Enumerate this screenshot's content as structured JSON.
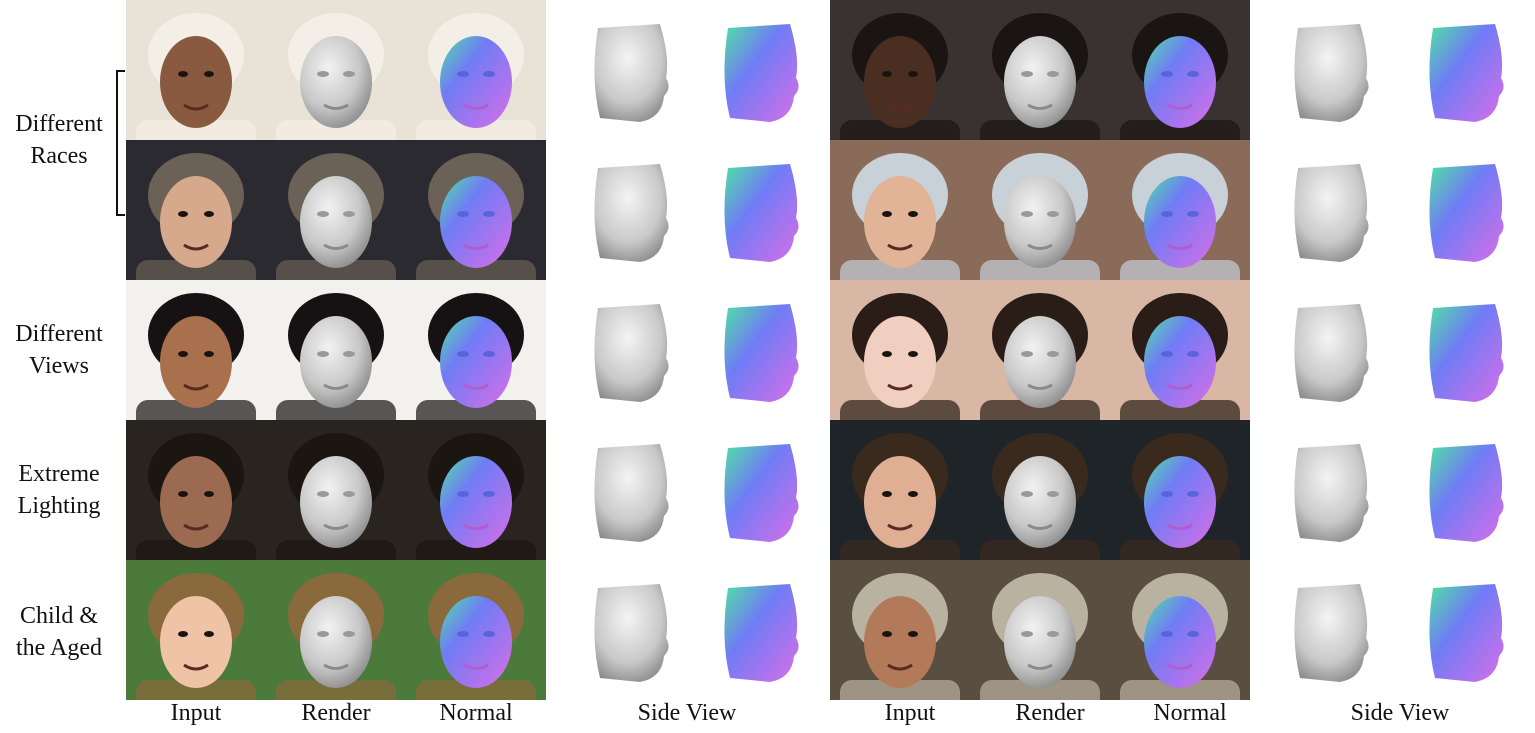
{
  "row_labels": [
    {
      "line1": "Different",
      "line2": "Races"
    },
    {
      "line1": "Different",
      "line2": "Views"
    },
    {
      "line1": "Extreme",
      "line2": "Lighting"
    },
    {
      "line1": "Child &",
      "line2": "the Aged"
    }
  ],
  "column_labels": {
    "left": [
      "Input",
      "Render",
      "Normal",
      "Side View"
    ],
    "right": [
      "Input",
      "Render",
      "Normal",
      "Side View"
    ]
  },
  "colors": {
    "render_gray": "#c9c9c9",
    "normal_blue": "#6f7cf5",
    "normal_magenta": "#d86ee8",
    "normal_green": "#4fe3a3"
  },
  "rows": [
    {
      "left": {
        "bg": "#e9e2d6",
        "skin": "#8a5a40",
        "hair": "#f4efe6"
      },
      "right": {
        "bg": "#3a3230",
        "skin": "#4a2e22",
        "hair": "#1a1412"
      }
    },
    {
      "left": {
        "bg": "#2a2a30",
        "skin": "#d7a98c",
        "hair": "#6b6156"
      },
      "right": {
        "bg": "#8a6a58",
        "skin": "#e2b497",
        "hair": "#c8d0d8"
      }
    },
    {
      "left": {
        "bg": "#f3f1ee",
        "skin": "#a8704c",
        "hair": "#161214"
      },
      "right": {
        "bg": "#d9b7a5",
        "skin": "#f0cfc0",
        "hair": "#2a1c16"
      }
    },
    {
      "left": {
        "bg": "#2a2420",
        "skin": "#9c6a50",
        "hair": "#1c1612"
      },
      "right": {
        "bg": "#1e2428",
        "skin": "#e0ae92",
        "hair": "#3a2a1e"
      }
    },
    {
      "left": {
        "bg": "#4c7a3a",
        "skin": "#efc3a6",
        "hair": "#8a6a3c"
      },
      "right": {
        "bg": "#5a4e40",
        "skin": "#b27a58",
        "hair": "#b9b2a0"
      }
    }
  ]
}
